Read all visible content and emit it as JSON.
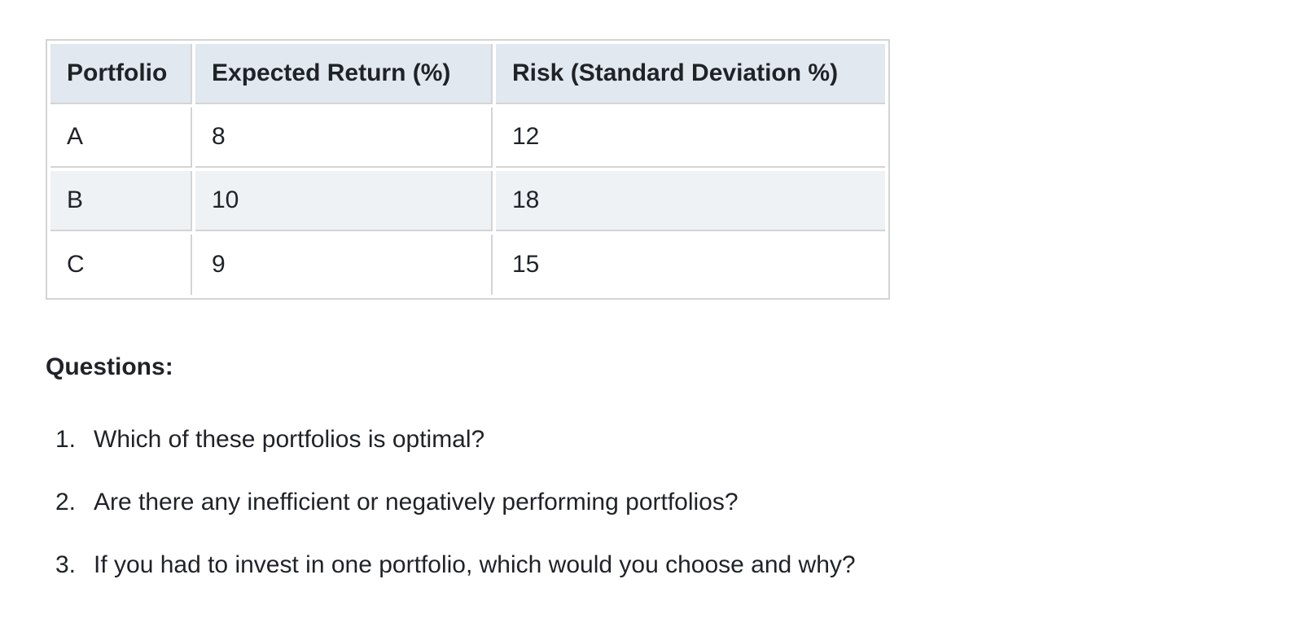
{
  "table": {
    "header": [
      "Portfolio",
      "Expected Return (%)",
      "Risk (Standard Deviation %)"
    ],
    "rows": [
      [
        "A",
        8,
        12
      ],
      [
        "B",
        10,
        18
      ],
      [
        "C",
        9,
        15
      ]
    ]
  },
  "questions": {
    "heading": "Questions:",
    "items": [
      {
        "marker": "1.",
        "text": "Which of these portfolios is optimal?"
      },
      {
        "marker": "2.",
        "text": "Are there any inefficient or negatively performing portfolios?"
      },
      {
        "marker": "3.",
        "text": "If you had to invest in one portfolio, which would you choose and why?"
      }
    ]
  }
}
